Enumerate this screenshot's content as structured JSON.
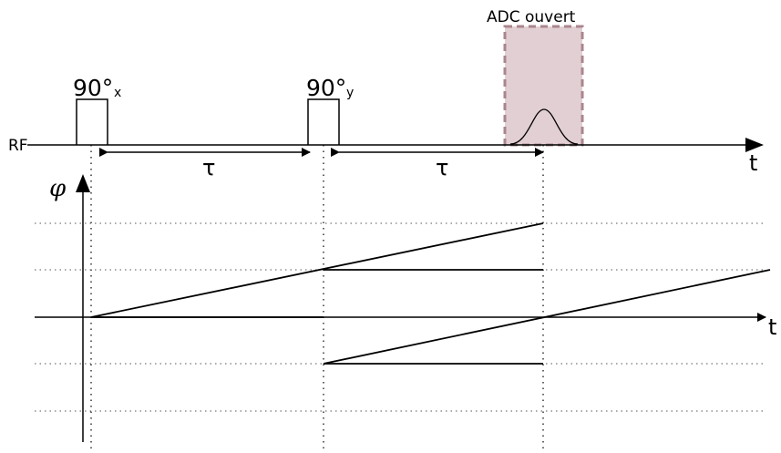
{
  "rf": {
    "axis_label": "RF",
    "time_label": "t",
    "pulse1": {
      "angle": "90°",
      "subscript": "x"
    },
    "pulse2": {
      "angle": "90°",
      "subscript": "y"
    },
    "delay1": "τ",
    "delay2": "τ",
    "adc_label": "ADC ouvert"
  },
  "phase": {
    "axis_label": "φ",
    "time_label": "t"
  },
  "colors": {
    "adc_fill": "#e2cfd3",
    "adc_border": "#a9868d",
    "line": "#000000"
  }
}
